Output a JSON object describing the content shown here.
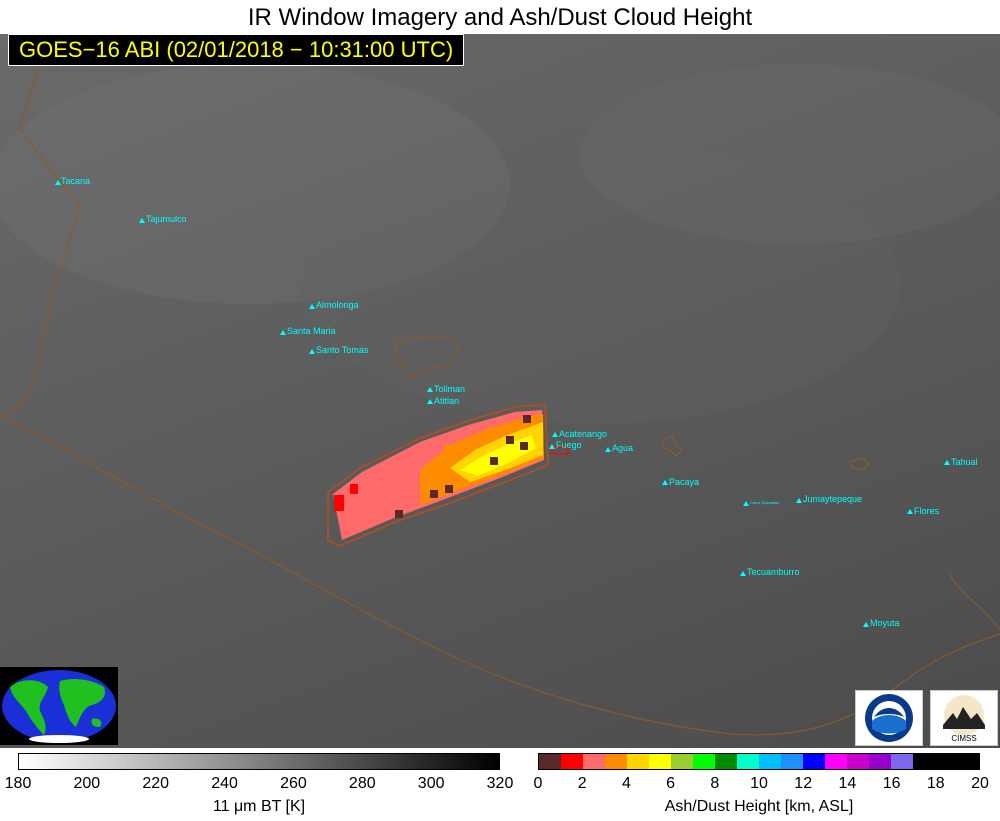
{
  "title": "IR Window Imagery and Ash/Dust Cloud Height",
  "subtitle": "GOES−16 ABI (02/01/2018 − 10:31:00 UTC)",
  "volcanoes": [
    {
      "name": "Tacana"
    },
    {
      "name": "Tajumulco"
    },
    {
      "name": "Almolonga"
    },
    {
      "name": "Santa Maria"
    },
    {
      "name": "Santo Tomas"
    },
    {
      "name": "Toliman"
    },
    {
      "name": "Atitlan"
    },
    {
      "name": "Acatenango"
    },
    {
      "name": "Fuego"
    },
    {
      "name": "Agua"
    },
    {
      "name": "Pacaya"
    },
    {
      "name": "Cerro Quemado"
    },
    {
      "name": "Jumaytepeque"
    },
    {
      "name": "Tecuamburro"
    },
    {
      "name": "Tahual"
    },
    {
      "name": "Flores"
    },
    {
      "name": "Moyuta"
    }
  ],
  "bt_colorbar": {
    "label": "11 μm BT [K]",
    "ticks": [
      "180",
      "200",
      "220",
      "240",
      "260",
      "280",
      "300",
      "320"
    ],
    "range": [
      180,
      320
    ]
  },
  "ash_colorbar": {
    "label": "Ash/Dust Height [km, ASL]",
    "ticks": [
      "0",
      "2",
      "4",
      "6",
      "8",
      "10",
      "12",
      "14",
      "16",
      "18",
      "20"
    ],
    "range": [
      0,
      20
    ],
    "colors": [
      "#5a2a2a",
      "#ff0000",
      "#ff6a6a",
      "#ff8c00",
      "#ffd400",
      "#ffff00",
      "#9acd32",
      "#00ff00",
      "#008b00",
      "#00ffcc",
      "#00bfff",
      "#1e90ff",
      "#0000ff",
      "#ff00ff",
      "#cc00cc",
      "#9900cc",
      "#7b68ee",
      "#000000",
      "#000000",
      "#000000"
    ]
  },
  "logos": {
    "noaa": "NOAA",
    "cimss": "CIMSS"
  },
  "colors": {
    "volcano_marker": "#00ffff",
    "subtitle_text": "#ffff00",
    "coastline": "#8b5a2b"
  }
}
